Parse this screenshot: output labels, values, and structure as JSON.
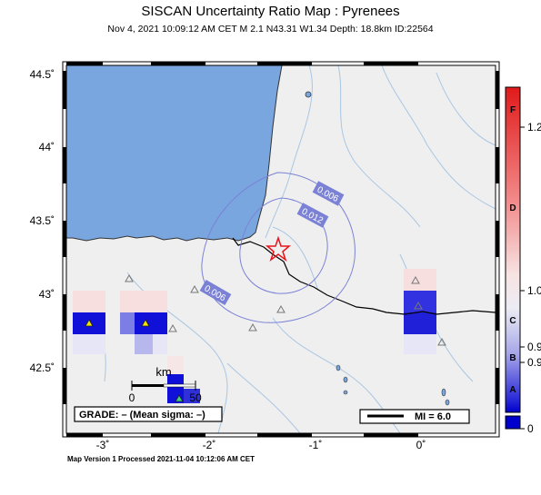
{
  "map": {
    "title": "SISCAN Uncertainty Ratio Map : Pyrenees",
    "subtitle": "Nov  4, 2021 10:09:12 AM CET   M 2.1   N43.31 W1.34   Depth: 18.8km   ID:22564",
    "footer": "Map Version 1 Processed 2021-11-04 10:12:06 AM CET",
    "lat_labels": [
      "44.5˚",
      "44˚",
      "43.5˚",
      "43˚",
      "42.5˚"
    ],
    "lon_labels": [
      "-3˚",
      "-2˚",
      "-1˚",
      "0˚"
    ],
    "contour_labels": [
      "0.006",
      "0.012",
      "0.006"
    ],
    "scalebar": {
      "unit": "km",
      "start": "0",
      "end": "50"
    },
    "grade_text": "GRADE: – (Mean sigma: –)",
    "mi_text": "MI = 6.0"
  },
  "colorbar": {
    "letters": [
      "F",
      "D",
      "C",
      "B",
      "A"
    ],
    "values": [
      "1.2",
      "1.0",
      "0.9",
      "0.9",
      "0"
    ]
  },
  "colors": {
    "ocean": "#7aa6df",
    "land": "#efefef",
    "rivers": "#a9c6e3",
    "contour": "#7b82d6",
    "star": "#e8141c",
    "high": "#e11a1a",
    "low": "#0000cc"
  }
}
